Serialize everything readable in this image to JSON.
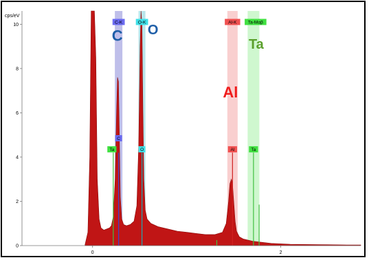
{
  "chart_data": {
    "type": "area",
    "title": "",
    "ylabel": "cps/eV",
    "xlabel": "",
    "xlim": [
      -0.75,
      2.85
    ],
    "ylim": [
      0,
      10.6
    ],
    "x_ticks": [
      {
        "value": 0,
        "label": "0"
      },
      {
        "value": 2,
        "label": "2"
      }
    ],
    "y_ticks": [
      {
        "value": 0,
        "label": "0"
      },
      {
        "value": 2,
        "label": "2"
      },
      {
        "value": 4,
        "label": "4"
      },
      {
        "value": 6,
        "label": "6"
      },
      {
        "value": 8,
        "label": "8"
      },
      {
        "value": 10,
        "label": "10"
      }
    ],
    "grid": false,
    "spectrum": {
      "color": "#c01515",
      "x": [
        -0.08,
        -0.05,
        -0.03,
        -0.015,
        0.0,
        0.01,
        0.02,
        0.035,
        0.05,
        0.07,
        0.09,
        0.12,
        0.15,
        0.18,
        0.2,
        0.22,
        0.24,
        0.255,
        0.265,
        0.275,
        0.285,
        0.295,
        0.31,
        0.33,
        0.36,
        0.4,
        0.44,
        0.47,
        0.49,
        0.505,
        0.515,
        0.525,
        0.535,
        0.545,
        0.56,
        0.58,
        0.62,
        0.7,
        0.8,
        0.9,
        1.0,
        1.1,
        1.2,
        1.3,
        1.38,
        1.42,
        1.445,
        1.46,
        1.475,
        1.487,
        1.5,
        1.515,
        1.53,
        1.56,
        1.6,
        1.7,
        1.8,
        1.9,
        2.0,
        2.1,
        2.3,
        2.5,
        2.7,
        2.85
      ],
      "y": [
        0.05,
        0.6,
        4.0,
        10.6,
        10.6,
        10.6,
        10.6,
        8.5,
        3.0,
        1.2,
        0.8,
        0.7,
        0.75,
        0.8,
        0.9,
        1.3,
        3.0,
        6.0,
        7.6,
        7.4,
        5.0,
        2.2,
        1.2,
        0.95,
        0.9,
        0.95,
        1.1,
        1.8,
        4.5,
        9.0,
        10.6,
        10.0,
        6.0,
        3.0,
        1.6,
        1.2,
        1.0,
        0.85,
        0.75,
        0.65,
        0.6,
        0.55,
        0.5,
        0.5,
        0.6,
        1.0,
        2.0,
        2.8,
        3.0,
        2.8,
        2.0,
        1.1,
        0.65,
        0.4,
        0.3,
        0.2,
        0.15,
        0.1,
        0.08,
        0.06,
        0.05,
        0.04,
        0.03,
        0.03
      ]
    },
    "element_bands": [
      {
        "element": "C",
        "line": "C-K",
        "x": 0.277,
        "color": "#8a8ad8",
        "tag_color": "#6a6af0",
        "big_color": "#1f5fa8"
      },
      {
        "element": "O",
        "line": "O-K",
        "x": 0.525,
        "color": "#7fd0d8",
        "tag_color": "#40e0e8",
        "big_color": "#1f5fa8"
      },
      {
        "element": "Al",
        "line": "Al-K",
        "x": 1.487,
        "color": "#f4a8a8",
        "tag_color": "#f05050",
        "big_color": "#f01c1c"
      },
      {
        "element": "Ta",
        "line": "Ta-Mαβ",
        "x": 1.71,
        "color": "#a8f0a8",
        "tag_color": "#40e040",
        "big_color": "#5aa02c"
      }
    ],
    "marker_lines": [
      {
        "label": "Ta",
        "x": 0.22,
        "color": "#40c040",
        "tag_color": "#40e040"
      },
      {
        "label": "C",
        "x": 0.277,
        "color": "#4040d0",
        "tag_color": "#6a6af0"
      },
      {
        "label": "O",
        "x": 0.525,
        "color": "#20a8b0",
        "tag_color": "#40e0e8"
      },
      {
        "label": "Al",
        "x": 1.487,
        "color": "#d02020",
        "tag_color": "#f05050"
      },
      {
        "label": "Ta",
        "x": 1.71,
        "color": "#40c040",
        "tag_color": "#40e040"
      }
    ],
    "minor_lines": [
      {
        "x": 1.32,
        "y": 0.25,
        "color": "#40c040"
      },
      {
        "x": 1.77,
        "y": 1.85,
        "color": "#40c040"
      }
    ]
  }
}
